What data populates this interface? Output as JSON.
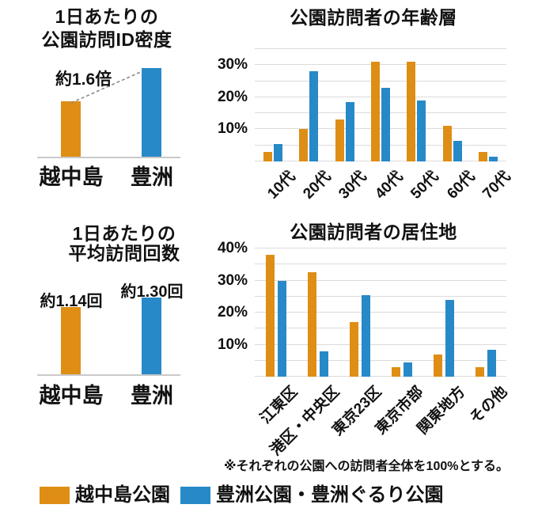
{
  "colors": {
    "orange": "#DE8E14",
    "blue": "#2789C7",
    "gridline": "#DBDBDB",
    "axis_line": "#C9C9C9",
    "text": "#111111",
    "annotation_line": "#8A8A8A",
    "background": "#FFFFFF"
  },
  "footnote": "※それぞれの公園への訪問者全体を100%とする。",
  "legend": {
    "items": [
      {
        "label": "越中島公園",
        "color_key": "orange"
      },
      {
        "label": "豊洲公園・豊洲ぐるり公園",
        "color_key": "blue"
      }
    ]
  },
  "chart_data": [
    {
      "id": "id-density",
      "type": "bar",
      "title_lines": [
        "1日あたりの",
        "公園訪問ID密度"
      ],
      "annotation": "約1.6倍",
      "categories": [
        "越中島",
        "豊洲"
      ],
      "values": [
        1,
        1.6
      ],
      "ylim": [
        0,
        1.8
      ],
      "bar_colors": [
        "orange",
        "blue"
      ],
      "grid": false
    },
    {
      "id": "age-groups",
      "type": "bar",
      "title": "公園訪問者の年齢層",
      "categories": [
        "10代",
        "20代",
        "30代",
        "40代",
        "50代",
        "60代",
        "70代"
      ],
      "series": [
        {
          "name": "越中島公園",
          "color_key": "orange",
          "values": [
            3,
            10,
            13,
            31,
            31,
            11,
            3
          ]
        },
        {
          "name": "豊洲公園・豊洲ぐるり公園",
          "color_key": "blue",
          "values": [
            5.5,
            28,
            18.5,
            23,
            19,
            6.5,
            1.5
          ]
        }
      ],
      "ylabel": "%",
      "ylim": [
        0,
        35
      ],
      "grid_step": 5,
      "yticks": [
        10,
        20,
        30
      ],
      "grid": true,
      "legend_position": "bottom"
    },
    {
      "id": "avg-visits",
      "type": "bar",
      "title_lines": [
        "1日あたりの",
        "平均訪問回数"
      ],
      "categories": [
        "越中島",
        "豊洲"
      ],
      "values": [
        1.14,
        1.3
      ],
      "bar_labels": [
        "約1.14回",
        "約1.30回"
      ],
      "ylim": [
        0,
        1.5
      ],
      "bar_colors": [
        "orange",
        "blue"
      ],
      "grid": false
    },
    {
      "id": "residence",
      "type": "bar",
      "title": "公園訪問者の居住地",
      "categories": [
        "江東区",
        "港区・中央区",
        "東京23区",
        "東京市部",
        "関東地方",
        "その他"
      ],
      "series": [
        {
          "name": "越中島公園",
          "color_key": "orange",
          "values": [
            38,
            32.5,
            17,
            3,
            7,
            3
          ]
        },
        {
          "name": "豊洲公園・豊洲ぐるり公園",
          "color_key": "blue",
          "values": [
            30,
            8,
            25.5,
            4.5,
            24,
            8.5
          ]
        }
      ],
      "ylabel": "%",
      "ylim": [
        0,
        40
      ],
      "grid_step": 5,
      "yticks": [
        10,
        20,
        30,
        40
      ],
      "grid": true,
      "legend_position": "bottom"
    }
  ]
}
